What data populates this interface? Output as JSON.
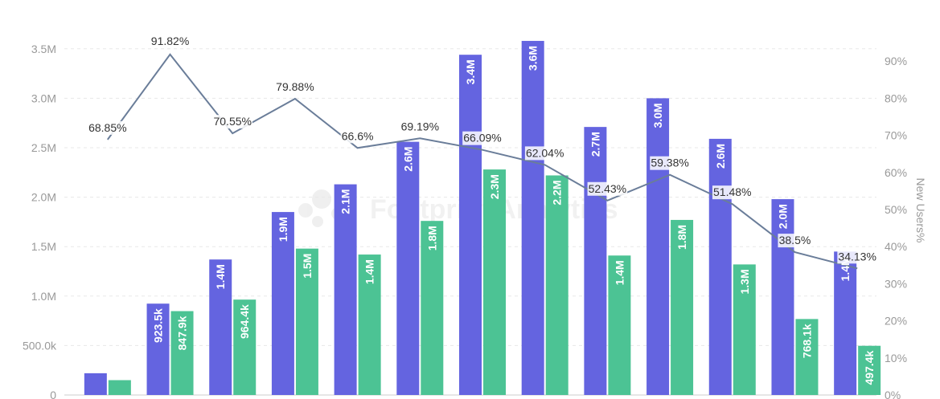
{
  "watermark": {
    "text": "Footprint Analytics"
  },
  "chart_data": {
    "type": "bar",
    "title": "",
    "xlabel": "",
    "ylabel": "",
    "y2label": "New Users%",
    "ylim": [
      0,
      3750000
    ],
    "y2lim": [
      0,
      100
    ],
    "yticks": [
      "0",
      "500.0k",
      "1.0M",
      "1.5M",
      "2.0M",
      "2.5M",
      "3.0M",
      "3.5M"
    ],
    "y2ticks": [
      "0%",
      "10%",
      "20%",
      "30%",
      "40%",
      "50%",
      "60%",
      "70%",
      "80%",
      "90%"
    ],
    "grid": true,
    "colors": {
      "series1": "#6464e0",
      "series2": "#4cc394",
      "line": "#6a7d99"
    },
    "series": [
      {
        "values": [
          220000,
          923500,
          1370000,
          1850000,
          2130000,
          2560000,
          3440000,
          3580000,
          2710000,
          3000000,
          2590000,
          1980000,
          1450000
        ],
        "labels": [
          "",
          "923.5k",
          "1.4M",
          "1.9M",
          "2.1M",
          "2.6M",
          "3.4M",
          "3.6M",
          "2.7M",
          "3.0M",
          "2.6M",
          "2.0M",
          "1.4M"
        ]
      },
      {
        "values": [
          150000,
          847900,
          964400,
          1480000,
          1420000,
          1760000,
          2280000,
          2220000,
          1410000,
          1770000,
          1320000,
          768100,
          497400
        ],
        "labels": [
          "",
          "847.9k",
          "964.4k",
          "1.5M",
          "1.4M",
          "1.8M",
          "2.3M",
          "2.2M",
          "1.4M",
          "1.8M",
          "1.3M",
          "768.1k",
          "497.4k"
        ]
      },
      {
        "type": "line",
        "axis": "right",
        "values": [
          68.85,
          91.82,
          70.55,
          79.88,
          66.6,
          69.19,
          66.09,
          62.04,
          52.43,
          59.38,
          51.48,
          38.5,
          34.13
        ],
        "labels": [
          "68.85%",
          "91.82%",
          "70.55%",
          "79.88%",
          "66.6%",
          "69.19%",
          "66.09%",
          "62.04%",
          "52.43%",
          "59.38%",
          "51.48%",
          "38.5%",
          "34.13%"
        ]
      }
    ]
  }
}
